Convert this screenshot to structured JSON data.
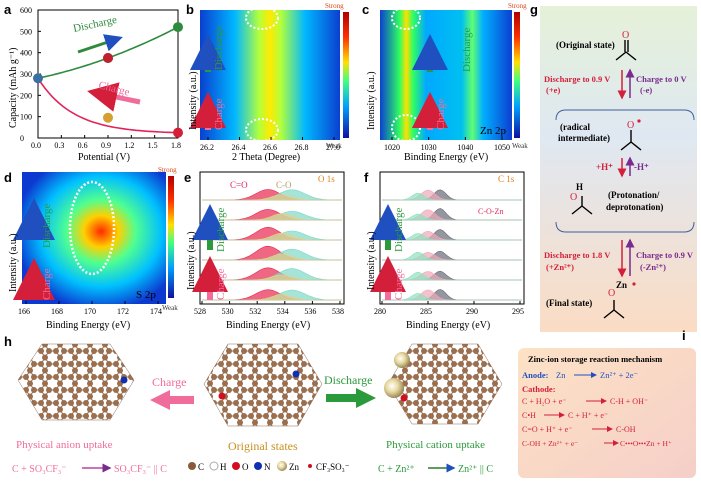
{
  "panels": {
    "a": {
      "letter": "a",
      "ylabel": "Capacity (mAh g⁻¹)",
      "xlabel": "Potential (V)",
      "discharge_label": "Discharge",
      "charge_label": "Charge"
    },
    "b": {
      "letter": "b",
      "xlabel": "2 Theta (Degree)",
      "ylabel": "Intensity (a.u.)",
      "discharge": "Discharge",
      "charge": "Charge",
      "scale_strong": "Strong",
      "scale_weak": "Weak"
    },
    "c": {
      "letter": "c",
      "xlabel": "Binding Energy (eV)",
      "ylabel": "Intensity (a.u.)",
      "discharge": "Discharge",
      "charge": "Charge",
      "tag": "Zn 2p",
      "scale_strong": "Strong",
      "scale_weak": "Weak"
    },
    "d": {
      "letter": "d",
      "xlabel": "Binding Energy (eV)",
      "ylabel": "Intensity (a.u.)",
      "discharge": "Discharge",
      "charge": "Charge",
      "tag": "S 2p",
      "scale_strong": "Strong",
      "scale_weak": "Weak"
    },
    "e": {
      "letter": "e",
      "xlabel": "Binding Energy (eV)",
      "ylabel": "Intensity (a.u.)",
      "discharge": "Discharge",
      "charge": "Charge",
      "tag": "O 1s",
      "peak1": "C=O",
      "peak2": "C-O"
    },
    "f": {
      "letter": "f",
      "xlabel": "Binding Energy (eV)",
      "ylabel": "Intensity (a.u.)",
      "discharge": "Discharge",
      "charge": "Charge",
      "tag": "C 1s",
      "peak": "C-O-Zn"
    },
    "g": {
      "letter": "g",
      "original": "(Original state)",
      "discharge1": "Discharge to 0.9 V",
      "discharge1b": "(+e)",
      "charge1": "Charge to 0 V",
      "charge1b": "(-e)",
      "radical1": "(radical",
      "radical2": "intermediate)",
      "h_plus": "+H⁺",
      "h_minus": "-H⁺",
      "proton1": "(Protonation/",
      "proton2": "deprotonation)",
      "discharge2": "Discharge to 1.8 V",
      "discharge2b": "(+Zn²⁺)",
      "charge2": "Charge to 0.9 V",
      "charge2b": "(-Zn²⁺)",
      "final": "(Final state)",
      "zn": "Zn"
    },
    "h": {
      "letter": "h",
      "charge": "Charge",
      "discharge": "Discharge",
      "original": "Original states",
      "anion_uptake": "Physical anion uptake",
      "cation_uptake": "Physical cation uptake",
      "eq_left_a": "C + SO₃CF₃⁻",
      "eq_left_b": "SO₃CF₃⁻ || C",
      "eq_right_a": "C + Zn²⁺",
      "eq_right_b": "Zn²⁺ || C",
      "legend_c": "C",
      "legend_h": "H",
      "legend_o": "O",
      "legend_n": "N",
      "legend_zn": "Zn",
      "legend_otf": "CF₃SO₃⁻"
    },
    "i": {
      "letter": "i",
      "title": "Zinc-ion storage reaction mechanism",
      "anode_label": "Anode:",
      "anode_eq_a": "Zn",
      "anode_eq_b": "Zn²⁺ + 2e⁻",
      "cathode_label": "Cathode:",
      "r1a": "C + H₂O + e⁻",
      "r1b": "C-H + OH⁻",
      "r2a": "C•H",
      "r2b": "C + H⁺ + e⁻",
      "r3a": "C=O + H⁺ + e⁻",
      "r3b": "C-OH",
      "r4a": "C-OH + Zn²⁺ + e⁻",
      "r4b": "C•••O•••Zn + H⁺"
    }
  },
  "chart_data": [
    {
      "type": "line",
      "panel": "a",
      "xlabel": "Potential (V)",
      "ylabel": "Capacity (mAh g⁻¹)",
      "xlim": [
        0,
        1.8
      ],
      "ylim": [
        0,
        600
      ],
      "xticks": [
        "0.0",
        "0.3",
        "0.6",
        "0.9",
        "1.2",
        "1.5",
        "1.8"
      ],
      "yticks": [
        "0",
        "100",
        "200",
        "300",
        "400",
        "500",
        "600"
      ],
      "series": [
        {
          "name": "Discharge",
          "x": [
            0.0,
            0.9,
            1.8
          ],
          "y": [
            280,
            375,
            520
          ]
        },
        {
          "name": "Charge",
          "x": [
            0.0,
            0.9,
            1.8
          ],
          "y": [
            280,
            95,
            25
          ]
        }
      ]
    },
    {
      "type": "heatmap",
      "panel": "b",
      "xlabel": "2 Theta (Degree)",
      "xticks": [
        "26.2",
        "26.4",
        "26.6",
        "26.8",
        "27.0"
      ]
    },
    {
      "type": "heatmap",
      "panel": "c",
      "xlabel": "Binding Energy (eV)",
      "xticks": [
        "1020",
        "1030",
        "1040",
        "1050"
      ]
    },
    {
      "type": "heatmap",
      "panel": "d",
      "xlabel": "Binding Energy (eV)",
      "xticks": [
        "166",
        "168",
        "170",
        "172",
        "174"
      ]
    },
    {
      "type": "line",
      "panel": "e",
      "xlabel": "Binding Energy (eV)",
      "xticks": [
        "528",
        "530",
        "532",
        "534",
        "536",
        "538"
      ]
    },
    {
      "type": "line",
      "panel": "f",
      "xlabel": "Binding Energy (eV)",
      "xticks": [
        "280",
        "285",
        "290",
        "295"
      ]
    }
  ]
}
